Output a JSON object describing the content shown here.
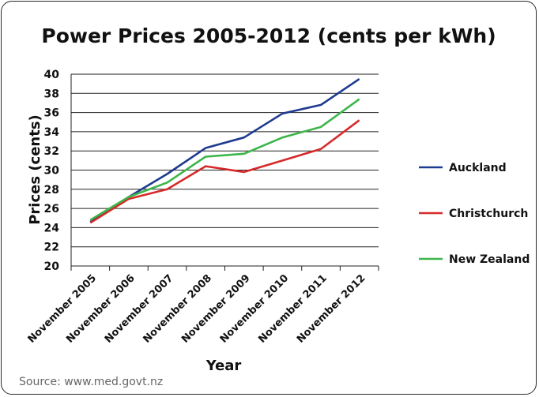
{
  "chart_data": {
    "type": "line",
    "title": "Power Prices 2005-2012 (cents per kWh)",
    "xlabel": "Year",
    "ylabel": "Prices (cents)",
    "ylim": [
      20,
      40
    ],
    "yticks": [
      "20",
      "22",
      "24",
      "26",
      "28",
      "30",
      "32",
      "34",
      "36",
      "38",
      "40"
    ],
    "categories": [
      "November 2005",
      "November 2006",
      "November 2007",
      "November 2008",
      "November 2009",
      "November 2010",
      "November 2011",
      "November 2012"
    ],
    "series": [
      {
        "name": "Auckland",
        "color": "#1f3b8f",
        "values": [
          24.6,
          27.2,
          29.6,
          32.3,
          33.4,
          35.9,
          36.8,
          39.5
        ]
      },
      {
        "name": "Christchurch",
        "color": "#d62a2a",
        "values": [
          24.5,
          27.0,
          28.0,
          30.4,
          29.8,
          31.0,
          32.2,
          35.2
        ]
      },
      {
        "name": "New Zealand",
        "color": "#3db54a",
        "values": [
          24.8,
          27.2,
          28.7,
          31.4,
          31.7,
          33.4,
          34.5,
          37.4
        ]
      }
    ],
    "grid": true,
    "legend_position": "right"
  },
  "source": "Source: www.med.govt.nz"
}
